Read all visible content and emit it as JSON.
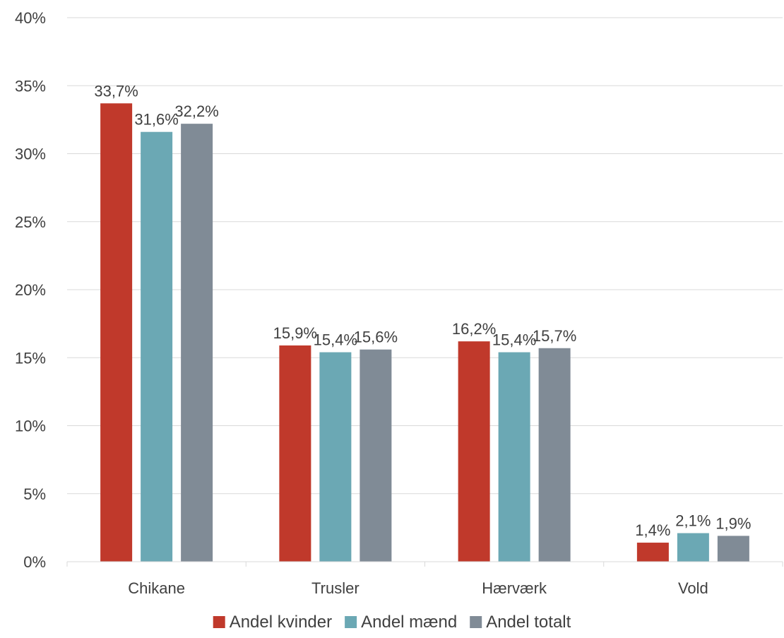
{
  "chart_data": {
    "type": "bar",
    "categories": [
      "Chikane",
      "Trusler",
      "Hærværk",
      "Vold"
    ],
    "series": [
      {
        "name": "Andel kvinder",
        "values": [
          33.7,
          15.9,
          16.2,
          1.4
        ],
        "labels": [
          "33,7%",
          "15,9%",
          "16,2%",
          "1,4%"
        ],
        "color": "#c0392b"
      },
      {
        "name": "Andel mænd",
        "values": [
          31.6,
          15.4,
          15.4,
          2.1
        ],
        "labels": [
          "31,6%",
          "15,4%",
          "15,4%",
          "2,1%"
        ],
        "color": "#6ba8b4"
      },
      {
        "name": "Andel totalt",
        "values": [
          32.2,
          15.6,
          15.7,
          1.9
        ],
        "labels": [
          "32,2%",
          "15,6%",
          "15,7%",
          "1,9%"
        ],
        "color": "#808b96"
      }
    ],
    "ylim": [
      0,
      40
    ],
    "y_ticks": [
      0,
      5,
      10,
      15,
      20,
      25,
      30,
      35,
      40
    ],
    "y_tick_labels": [
      "0%",
      "5%",
      "10%",
      "15%",
      "20%",
      "25%",
      "30%",
      "35%",
      "40%"
    ],
    "grid": true,
    "gridline_color": "#d9d9d9",
    "legend_position": "bottom",
    "title": "",
    "xlabel": "",
    "ylabel": ""
  }
}
